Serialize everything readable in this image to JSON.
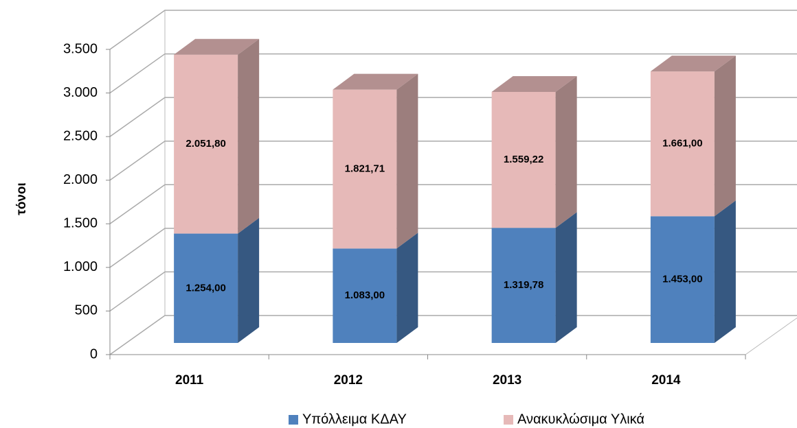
{
  "chart_data": {
    "type": "bar3d_stacked",
    "categories": [
      "2011",
      "2012",
      "2013",
      "2014"
    ],
    "y_label": "τόνοι",
    "series": [
      {
        "name": "Υπόλλειμα ΚΔΑΥ",
        "color": "#4f81bd",
        "values": [
          1254,
          1083,
          1319.78,
          1453
        ],
        "value_labels": [
          "1.254,00",
          "1.083,00",
          "1.319,78",
          "1.453,00"
        ]
      },
      {
        "name": "Ανακυκλώσιμα Υλικά",
        "color": "#e6b9b8",
        "values": [
          2051.8,
          1821.71,
          1559.22,
          1661
        ],
        "value_labels": [
          "2.051,80",
          "1.821,71",
          "1.559,22",
          "1.661,00"
        ]
      }
    ],
    "ylim": [
      0,
      3500
    ],
    "yticks": [
      0,
      500,
      {
        "value": 1000,
        "label": "1.000"
      },
      {
        "value": 1500,
        "label": "1.500"
      },
      {
        "value": 2000,
        "label": "2.000"
      },
      {
        "value": 2500,
        "label": "2.500"
      },
      {
        "value": 3000,
        "label": "3.000"
      },
      {
        "value": 3500,
        "label": "3.500"
      }
    ],
    "grid": true,
    "legend": "bottom"
  }
}
